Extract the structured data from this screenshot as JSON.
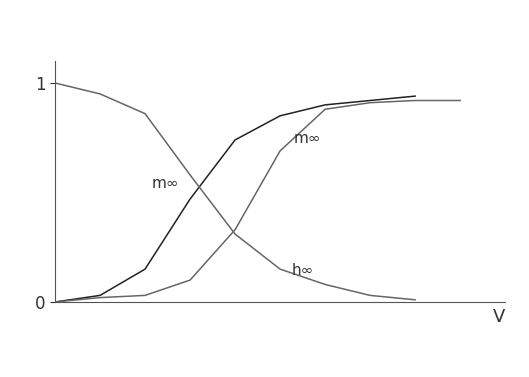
{
  "chart_data": {
    "type": "line",
    "x": [
      0,
      1,
      2,
      3,
      4,
      5,
      6,
      7,
      8,
      9,
      10
    ],
    "series": [
      {
        "name": "m∞",
        "color": "#222222",
        "values": [
          0.0,
          0.03,
          0.15,
          0.47,
          0.74,
          0.85,
          0.9,
          0.92,
          0.94,
          null,
          null
        ]
      },
      {
        "name": "m∞",
        "color": "#666666",
        "values": [
          0.0,
          0.02,
          0.03,
          0.1,
          0.33,
          0.69,
          0.88,
          0.91,
          0.92,
          0.92,
          null
        ]
      },
      {
        "name": "h∞",
        "color": "#666666",
        "values": [
          1.0,
          0.95,
          0.86,
          0.58,
          0.31,
          0.15,
          0.08,
          0.03,
          0.01,
          null,
          null
        ]
      }
    ],
    "x_label": "V",
    "xlim": [
      0,
      10
    ],
    "ylim": [
      0,
      1.1
    ],
    "yticks": [
      0,
      1
    ],
    "tick_labels": "y",
    "grid": false
  }
}
